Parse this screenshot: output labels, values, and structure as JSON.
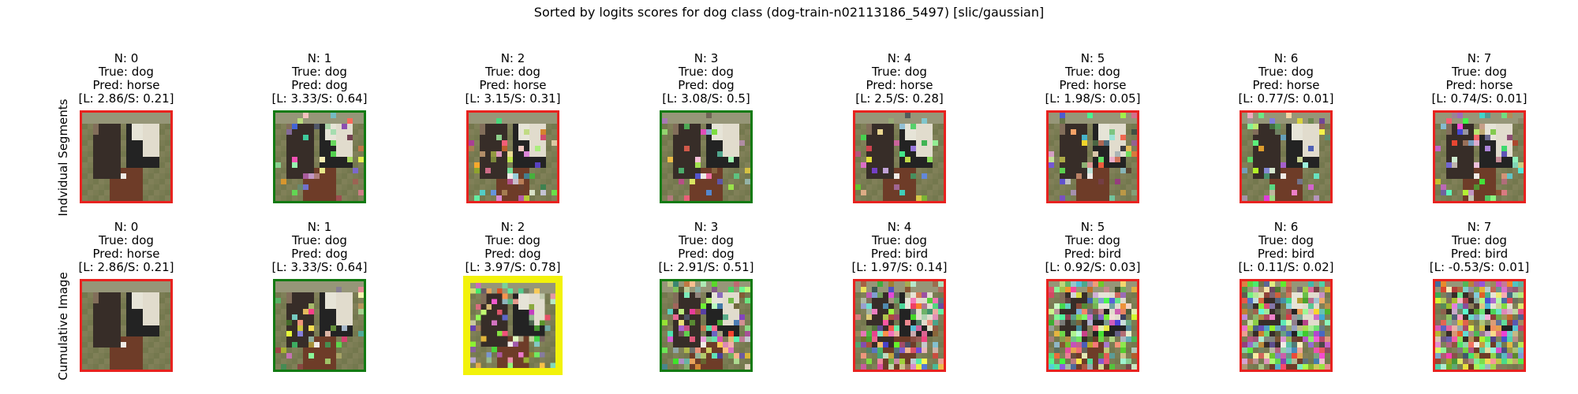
{
  "chart_data": {
    "type": "image-grid",
    "title": "Sorted by logits scores for dog class (dog-train-n02113186_5497) [slic/gaussian]",
    "row_labels": [
      "Indvidual Segments",
      "Cumulative Image"
    ],
    "frame_colors": {
      "red": "#e8221f",
      "green": "#127a12",
      "yellow": "#f2f20a"
    },
    "rows": [
      [
        {
          "n": "N: 0",
          "true": "True: dog",
          "pred": "Pred: horse",
          "scores": "[L: 2.86/S: 0.21]",
          "frame": "red",
          "noise": 0.0
        },
        {
          "n": "N: 1",
          "true": "True: dog",
          "pred": "Pred: dog",
          "scores": "[L: 3.33/S: 0.64]",
          "frame": "green",
          "noise": 0.15
        },
        {
          "n": "N: 2",
          "true": "True: dog",
          "pred": "Pred: horse",
          "scores": "[L: 3.15/S: 0.31]",
          "frame": "red",
          "noise": 0.15
        },
        {
          "n": "N: 3",
          "true": "True: dog",
          "pred": "Pred: dog",
          "scores": "[L: 3.08/S: 0.5]",
          "frame": "green",
          "noise": 0.1
        },
        {
          "n": "N: 4",
          "true": "True: dog",
          "pred": "Pred: horse",
          "scores": "[L: 2.5/S: 0.28]",
          "frame": "red",
          "noise": 0.12
        },
        {
          "n": "N: 5",
          "true": "True: dog",
          "pred": "Pred: horse",
          "scores": "[L: 1.98/S: 0.05]",
          "frame": "red",
          "noise": 0.15
        },
        {
          "n": "N: 6",
          "true": "True: dog",
          "pred": "Pred: horse",
          "scores": "[L: 0.77/S: 0.01]",
          "frame": "red",
          "noise": 0.15
        },
        {
          "n": "N: 7",
          "true": "True: dog",
          "pred": "Pred: horse",
          "scores": "[L: 0.74/S: 0.01]",
          "frame": "red",
          "noise": 0.2
        }
      ],
      [
        {
          "n": "N: 0",
          "true": "True: dog",
          "pred": "Pred: horse",
          "scores": "[L: 2.86/S: 0.21]",
          "frame": "red",
          "noise": 0.0
        },
        {
          "n": "N: 1",
          "true": "True: dog",
          "pred": "Pred: dog",
          "scores": "[L: 3.33/S: 0.64]",
          "frame": "green",
          "noise": 0.15
        },
        {
          "n": "N: 2",
          "true": "True: dog",
          "pred": "Pred: dog",
          "scores": "[L: 3.97/S: 0.78]",
          "frame": "yellow",
          "noise": 0.3
        },
        {
          "n": "N: 3",
          "true": "True: dog",
          "pred": "Pred: dog",
          "scores": "[L: 2.91/S: 0.51]",
          "frame": "green",
          "noise": 0.4
        },
        {
          "n": "N: 4",
          "true": "True: dog",
          "pred": "Pred: bird",
          "scores": "[L: 1.97/S: 0.14]",
          "frame": "red",
          "noise": 0.5
        },
        {
          "n": "N: 5",
          "true": "True: dog",
          "pred": "Pred: bird",
          "scores": "[L: 0.92/S: 0.03]",
          "frame": "red",
          "noise": 0.6
        },
        {
          "n": "N: 6",
          "true": "True: dog",
          "pred": "Pred: bird",
          "scores": "[L: 0.11/S: 0.02]",
          "frame": "red",
          "noise": 0.7
        },
        {
          "n": "N: 7",
          "true": "True: dog",
          "pred": "Pred: bird",
          "scores": "[L: -0.53/S: 0.01]",
          "frame": "red",
          "noise": 0.8
        }
      ]
    ]
  }
}
